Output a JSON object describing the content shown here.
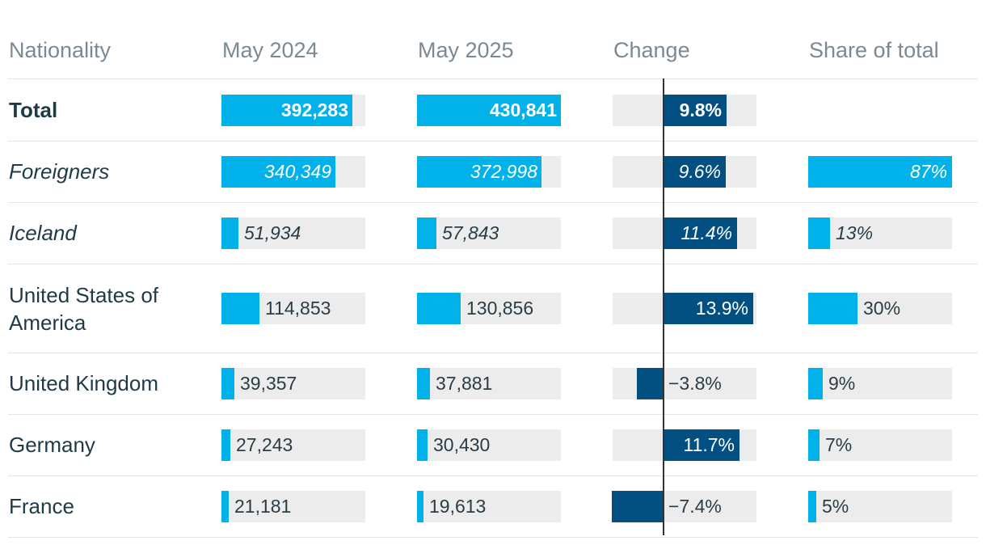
{
  "headers": {
    "nationality": "Nationality",
    "may2024": "May 2024",
    "may2025": "May 2025",
    "change": "Change",
    "share": "Share of total"
  },
  "colors": {
    "visitor_bar": "#00b2e9",
    "change_bar": "#024f82",
    "track": "#ececec",
    "text": "#1f3a47",
    "header_text": "#7b8a92"
  },
  "chart_data": {
    "type": "table",
    "columns": [
      "Nationality",
      "May 2024",
      "May 2025",
      "Change",
      "Share of total"
    ],
    "rows": [
      {
        "name": "Total",
        "style": "bold",
        "may2024": 392283,
        "may2024_label": "392,283",
        "may2025": 430841,
        "may2025_label": "430,841",
        "change": 9.8,
        "change_label": "9.8%",
        "share": null,
        "share_label": ""
      },
      {
        "name": "Foreigners",
        "style": "italic",
        "may2024": 340349,
        "may2024_label": "340,349",
        "may2025": 372998,
        "may2025_label": "372,998",
        "change": 9.6,
        "change_label": "9.6%",
        "share": 87,
        "share_label": "87%"
      },
      {
        "name": "Iceland",
        "style": "italic",
        "may2024": 51934,
        "may2024_label": "51,934",
        "may2025": 57843,
        "may2025_label": "57,843",
        "change": 11.4,
        "change_label": "11.4%",
        "share": 13,
        "share_label": "13%"
      },
      {
        "name": "United States of America",
        "style": "normal",
        "may2024": 114853,
        "may2024_label": "114,853",
        "may2025": 130856,
        "may2025_label": "130,856",
        "change": 13.9,
        "change_label": "13.9%",
        "share": 30,
        "share_label": "30%"
      },
      {
        "name": "United Kingdom",
        "style": "normal",
        "may2024": 39357,
        "may2024_label": "39,357",
        "may2025": 37881,
        "may2025_label": "37,881",
        "change": -3.8,
        "change_label": "−3.8%",
        "share": 9,
        "share_label": "9%"
      },
      {
        "name": "Germany",
        "style": "normal",
        "may2024": 27243,
        "may2024_label": "27,243",
        "may2025": 30430,
        "may2025_label": "30,430",
        "change": 11.7,
        "change_label": "11.7%",
        "share": 7,
        "share_label": "7%"
      },
      {
        "name": "France",
        "style": "normal",
        "may2024": 21181,
        "may2024_label": "21,181",
        "may2025": 19613,
        "may2025_label": "19,613",
        "change": -7.4,
        "change_label": "−7.4%",
        "share": 5,
        "share_label": "5%"
      }
    ]
  }
}
